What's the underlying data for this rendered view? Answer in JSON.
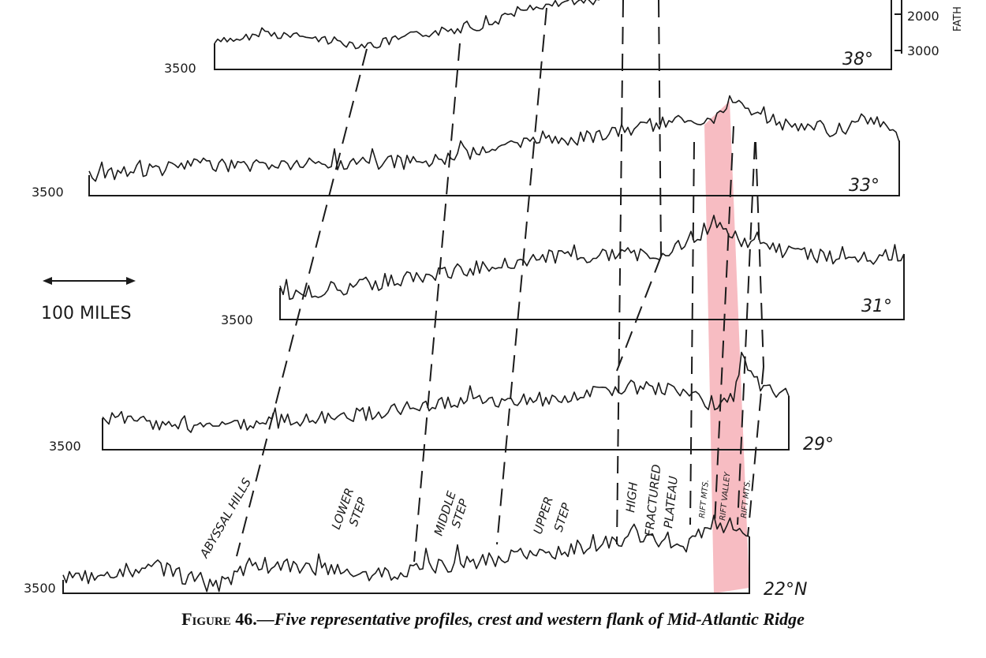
{
  "profiles": [
    {
      "latitude": "38°",
      "depth_label": "3500"
    },
    {
      "latitude": "33°",
      "depth_label": "3500"
    },
    {
      "latitude": "31°",
      "depth_label": "3500"
    },
    {
      "latitude": "29°",
      "depth_label": "3500"
    },
    {
      "latitude": "22°N",
      "depth_label": "3500"
    }
  ],
  "depth_scale": {
    "ticks": [
      "2000",
      "3000"
    ],
    "unit_label": "FATH"
  },
  "distance_scale": {
    "label": "100 MILES"
  },
  "zones": [
    {
      "lines": [
        "ABYSSAL HILLS"
      ]
    },
    {
      "lines": [
        "LOWER",
        "STEP"
      ]
    },
    {
      "lines": [
        "MIDDLE",
        "STEP"
      ]
    },
    {
      "lines": [
        "UPPER",
        "STEP"
      ]
    },
    {
      "lines": [
        "HIGH",
        "FRACTURED",
        "PLATEAU"
      ]
    },
    {
      "lines": [
        "RIFT MTS."
      ]
    },
    {
      "lines": [
        "RIFT VALLEY"
      ]
    },
    {
      "lines": [
        "RIFT MTS."
      ]
    }
  ],
  "caption": {
    "figure_number": "Figure 46.",
    "text": "—Five representative profiles, crest and western flank of Mid-Atlantic Ridge"
  },
  "colors": {
    "ink": "#1a1a1a",
    "rift_highlight": "#f4a6ad"
  }
}
